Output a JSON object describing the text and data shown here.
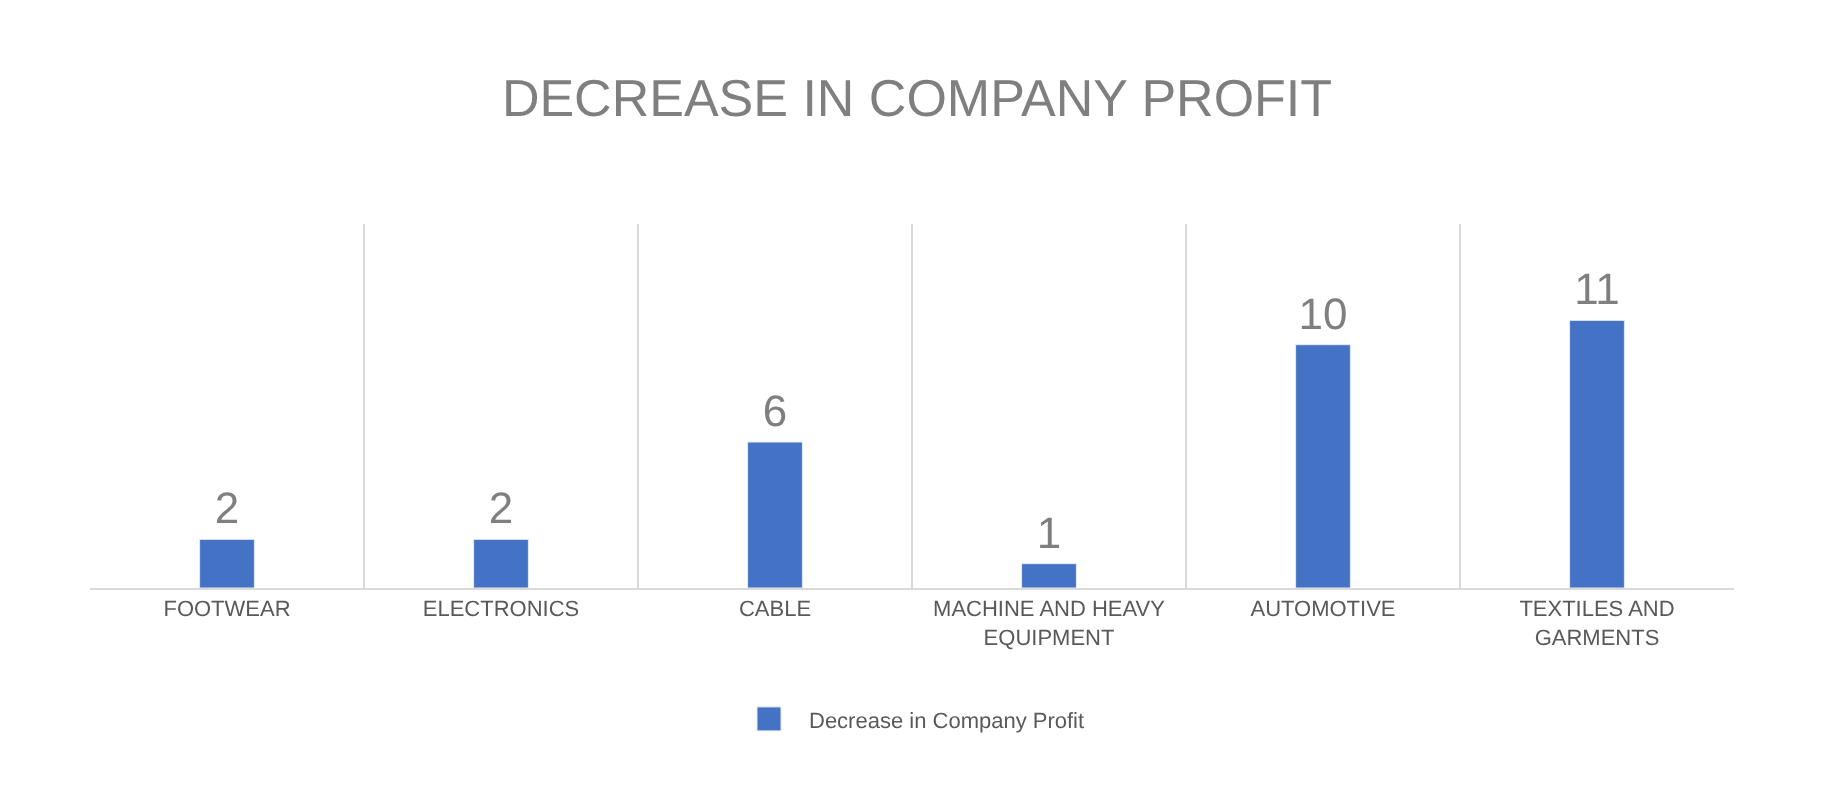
{
  "chart_data": {
    "type": "bar",
    "title": "DECREASE IN COMPANY PROFIT",
    "categories": [
      "FOOTWEAR",
      "ELECTRONICS",
      "CABLE",
      "MACHINE AND HEAVY EQUIPMENT",
      "AUTOMOTIVE",
      "TEXTILES AND GARMENTS"
    ],
    "series": [
      {
        "name": "Decrease in Company Profit",
        "color": "#4472c4",
        "values": [
          2,
          2,
          6,
          1,
          10,
          11
        ]
      }
    ],
    "data_labels": true,
    "grid": "x",
    "legend": "bottom",
    "tick_labels": "x"
  }
}
